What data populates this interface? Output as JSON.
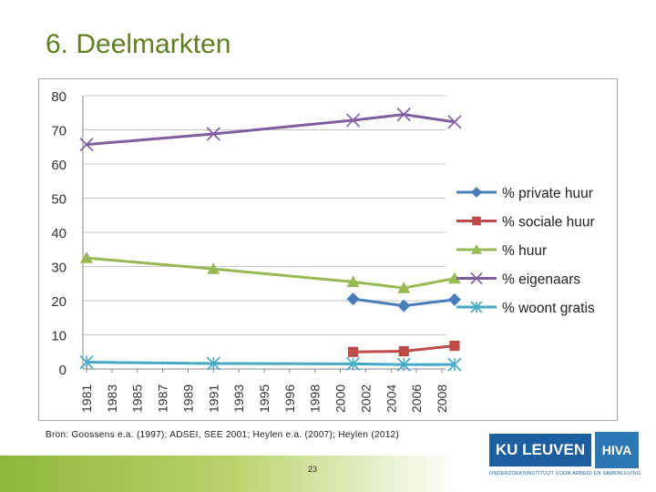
{
  "slide": {
    "title": "6. Deelmarkten",
    "source": "Bron: Goossens e.a. (1997); ADSEI, SEE 2001; Heylen e.a. (2007); Heylen (2012)",
    "page_number": "23",
    "logo_main": "KU LEUVEN",
    "logo_side": "HIVA",
    "logo_subtitle": "ONDERZOEKSINSTITUUT VOOR ARBEID EN SAMENLEVING"
  },
  "chart_data": {
    "type": "line",
    "title": "",
    "xlabel": "",
    "ylabel": "",
    "ylim": [
      0,
      80
    ],
    "yticks": [
      0,
      10,
      20,
      30,
      40,
      50,
      60,
      70,
      80
    ],
    "categories": [
      "1981",
      "1983",
      "1985",
      "1987",
      "1989",
      "1991",
      "1993",
      "1995",
      "1996",
      "1998",
      "2000",
      "2002",
      "2004",
      "2006",
      "2008"
    ],
    "grid": true,
    "legend_position": "right",
    "series": [
      {
        "name": "% private huur",
        "color": "#4a7ebb",
        "marker": "diamond",
        "points": [
          {
            "x": 2001,
            "y": 20.5
          },
          {
            "x": 2005,
            "y": 18.5
          },
          {
            "x": 2009,
            "y": 20.3
          }
        ]
      },
      {
        "name": "% sociale huur",
        "color": "#be4b48",
        "marker": "square",
        "points": [
          {
            "x": 2001,
            "y": 5
          },
          {
            "x": 2005,
            "y": 5.2
          },
          {
            "x": 2009,
            "y": 6.8
          }
        ]
      },
      {
        "name": "% huur",
        "color": "#98b954",
        "marker": "triangle",
        "points": [
          {
            "x": 1981,
            "y": 32.5
          },
          {
            "x": 1991,
            "y": 29.3
          },
          {
            "x": 2001,
            "y": 25.5
          },
          {
            "x": 2005,
            "y": 23.7
          },
          {
            "x": 2009,
            "y": 26.5
          }
        ]
      },
      {
        "name": "% eigenaars",
        "color": "#7d5fa0",
        "marker": "x",
        "points": [
          {
            "x": 1981,
            "y": 65.7
          },
          {
            "x": 1991,
            "y": 68.8
          },
          {
            "x": 2001,
            "y": 72.8
          },
          {
            "x": 2005,
            "y": 74.5
          },
          {
            "x": 2009,
            "y": 72.3
          }
        ]
      },
      {
        "name": "% woont gratis",
        "color": "#46aac5",
        "marker": "star",
        "points": [
          {
            "x": 1981,
            "y": 2
          },
          {
            "x": 1991,
            "y": 1.6
          },
          {
            "x": 2001,
            "y": 1.5
          },
          {
            "x": 2005,
            "y": 1.3
          },
          {
            "x": 2009,
            "y": 1.3
          }
        ]
      }
    ]
  }
}
